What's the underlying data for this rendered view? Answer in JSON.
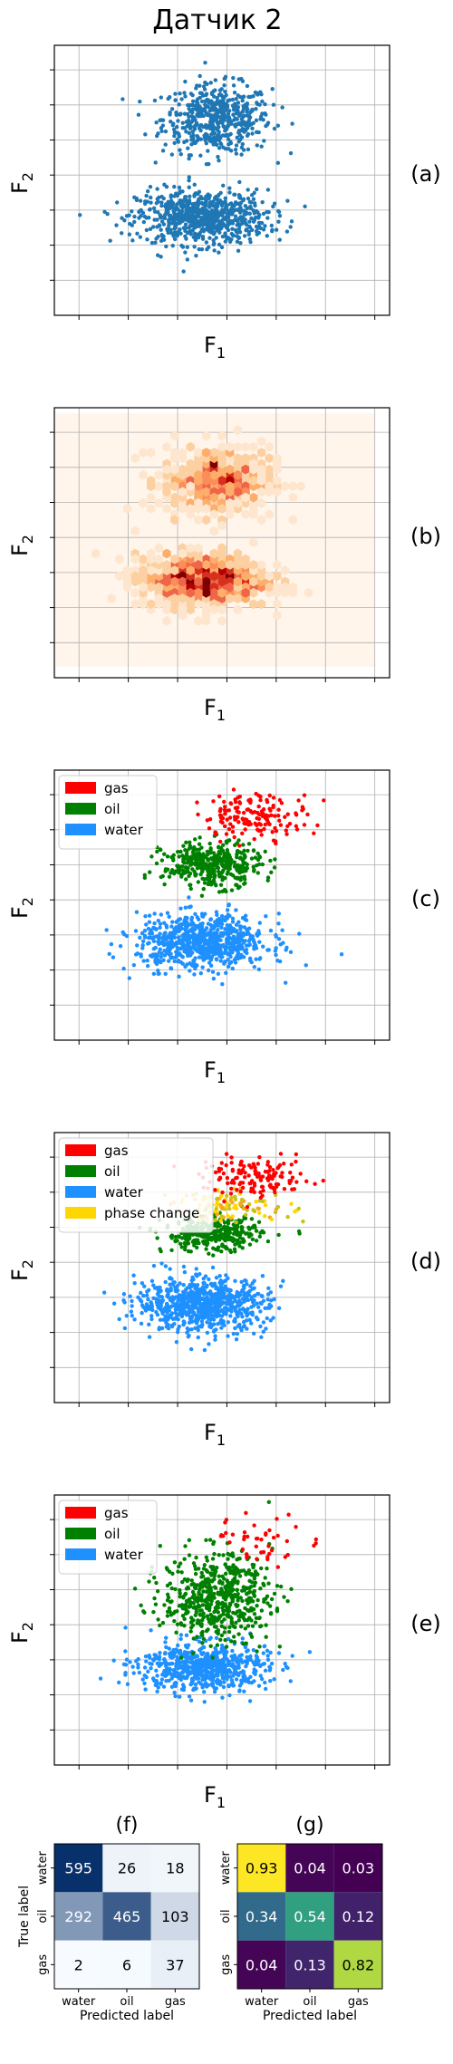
{
  "figure": {
    "title": "Датчик 2"
  },
  "panels": [
    {
      "letter": "(a)",
      "xlabel_main": "F",
      "xlabel_sub": "1",
      "ylabel_main": "F",
      "ylabel_sub": "2"
    },
    {
      "letter": "(b)",
      "xlabel_main": "F",
      "xlabel_sub": "1",
      "ylabel_main": "F",
      "ylabel_sub": "2"
    },
    {
      "letter": "(c)",
      "xlabel_main": "F",
      "xlabel_sub": "1",
      "ylabel_main": "F",
      "ylabel_sub": "2"
    },
    {
      "letter": "(d)",
      "xlabel_main": "F",
      "xlabel_sub": "1",
      "ylabel_main": "F",
      "ylabel_sub": "2"
    },
    {
      "letter": "(e)",
      "xlabel_main": "F",
      "xlabel_sub": "1",
      "ylabel_main": "F",
      "ylabel_sub": "2"
    }
  ],
  "colors": {
    "scatter_blue": "#1f77b4",
    "gas": "#ff0000",
    "oil": "#008000",
    "water": "#1e90ff",
    "phase_change": "#ffd700",
    "grid": "#b0b0b0",
    "heat_low": "#fff5eb",
    "heat_high": "#7f0000"
  },
  "chart_data": [
    {
      "panel": "(a)",
      "type": "scatter",
      "xlabel": "F1",
      "ylabel": "F2",
      "grid": true,
      "legend": null,
      "clusters": [
        {
          "name": "",
          "center": [
            0.3,
            3.1
          ],
          "spread": [
            1.0,
            0.7
          ],
          "count": 520
        },
        {
          "name": "",
          "center": [
            0.0,
            0.3
          ],
          "spread": [
            1.2,
            0.55
          ],
          "count": 760
        }
      ]
    },
    {
      "panel": "(b)",
      "type": "heatmap",
      "xlabel": "F1",
      "ylabel": "F2",
      "grid": true,
      "legend": null,
      "description_source": "hexbin density of panel (a) points",
      "hot_spots": [
        [
          0.3,
          3.1
        ],
        [
          0.0,
          0.3
        ]
      ]
    },
    {
      "panel": "(c)",
      "type": "scatter",
      "xlabel": "F1",
      "ylabel": "F2",
      "grid": true,
      "legend": "top-left",
      "series": [
        {
          "name": "gas",
          "color": "#ff0000",
          "center": [
            1.1,
            3.9
          ],
          "spread": [
            1.0,
            0.45
          ],
          "count": 150
        },
        {
          "name": "oil",
          "color": "#008000",
          "center": [
            0.2,
            2.5
          ],
          "spread": [
            0.9,
            0.45
          ],
          "count": 380
        },
        {
          "name": "water",
          "color": "#1e90ff",
          "center": [
            0.0,
            0.3
          ],
          "spread": [
            1.2,
            0.55
          ],
          "count": 760
        }
      ]
    },
    {
      "panel": "(d)",
      "type": "scatter",
      "xlabel": "F1",
      "ylabel": "F2",
      "grid": true,
      "legend": "top-left",
      "series": [
        {
          "name": "gas",
          "color": "#ff0000",
          "center": [
            1.1,
            3.9
          ],
          "spread": [
            1.0,
            0.4
          ],
          "count": 140
        },
        {
          "name": "oil",
          "color": "#008000",
          "center": [
            0.2,
            2.3
          ],
          "spread": [
            0.9,
            0.35
          ],
          "count": 330
        },
        {
          "name": "water",
          "color": "#1e90ff",
          "center": [
            0.0,
            0.3
          ],
          "spread": [
            1.2,
            0.55
          ],
          "count": 760
        },
        {
          "name": "phase change",
          "color": "#ffd700",
          "center": [
            0.6,
            3.1
          ],
          "spread": [
            1.1,
            0.3
          ],
          "count": 110
        }
      ]
    },
    {
      "panel": "(e)",
      "type": "scatter",
      "xlabel": "F1",
      "ylabel": "F2",
      "grid": true,
      "legend": "top-left",
      "series": [
        {
          "name": "gas",
          "color": "#ff0000",
          "center": [
            1.3,
            3.9
          ],
          "spread": [
            1.0,
            0.5
          ],
          "count": 45
        },
        {
          "name": "oil",
          "color": "#008000",
          "center": [
            0.3,
            2.3
          ],
          "spread": [
            1.0,
            0.9
          ],
          "count": 560
        },
        {
          "name": "water",
          "color": "#1e90ff",
          "center": [
            0.0,
            0.3
          ],
          "spread": [
            1.2,
            0.5
          ],
          "count": 620
        }
      ]
    },
    {
      "panel": "(f)",
      "type": "table",
      "xlabel": "Predicted label",
      "ylabel": "True label",
      "labels": [
        "water",
        "oil",
        "gas"
      ],
      "matrix": [
        [
          595,
          26,
          18
        ],
        [
          292,
          465,
          103
        ],
        [
          2,
          6,
          37
        ]
      ],
      "colormap": "Blues"
    },
    {
      "panel": "(g)",
      "type": "table",
      "xlabel": "Predicted label",
      "ylabel": "",
      "labels": [
        "water",
        "oil",
        "gas"
      ],
      "matrix": [
        [
          0.93,
          0.04,
          0.03
        ],
        [
          0.34,
          0.54,
          0.12
        ],
        [
          0.04,
          0.13,
          0.82
        ]
      ],
      "colormap": "viridis"
    }
  ],
  "matrix_texts": {
    "f": {
      "letter": "(f)",
      "ylabel": "True label",
      "xlabel": "Predicted label",
      "cells": [
        [
          "595",
          "26",
          "18"
        ],
        [
          "292",
          "465",
          "103"
        ],
        [
          "2",
          "6",
          "37"
        ]
      ],
      "labels": [
        "water",
        "oil",
        "gas"
      ]
    },
    "g": {
      "letter": "(g)",
      "xlabel": "Predicted label",
      "cells": [
        [
          "0.93",
          "0.04",
          "0.03"
        ],
        [
          "0.34",
          "0.54",
          "0.12"
        ],
        [
          "0.04",
          "0.13",
          "0.82"
        ]
      ],
      "labels": [
        "water",
        "oil",
        "gas"
      ]
    }
  }
}
